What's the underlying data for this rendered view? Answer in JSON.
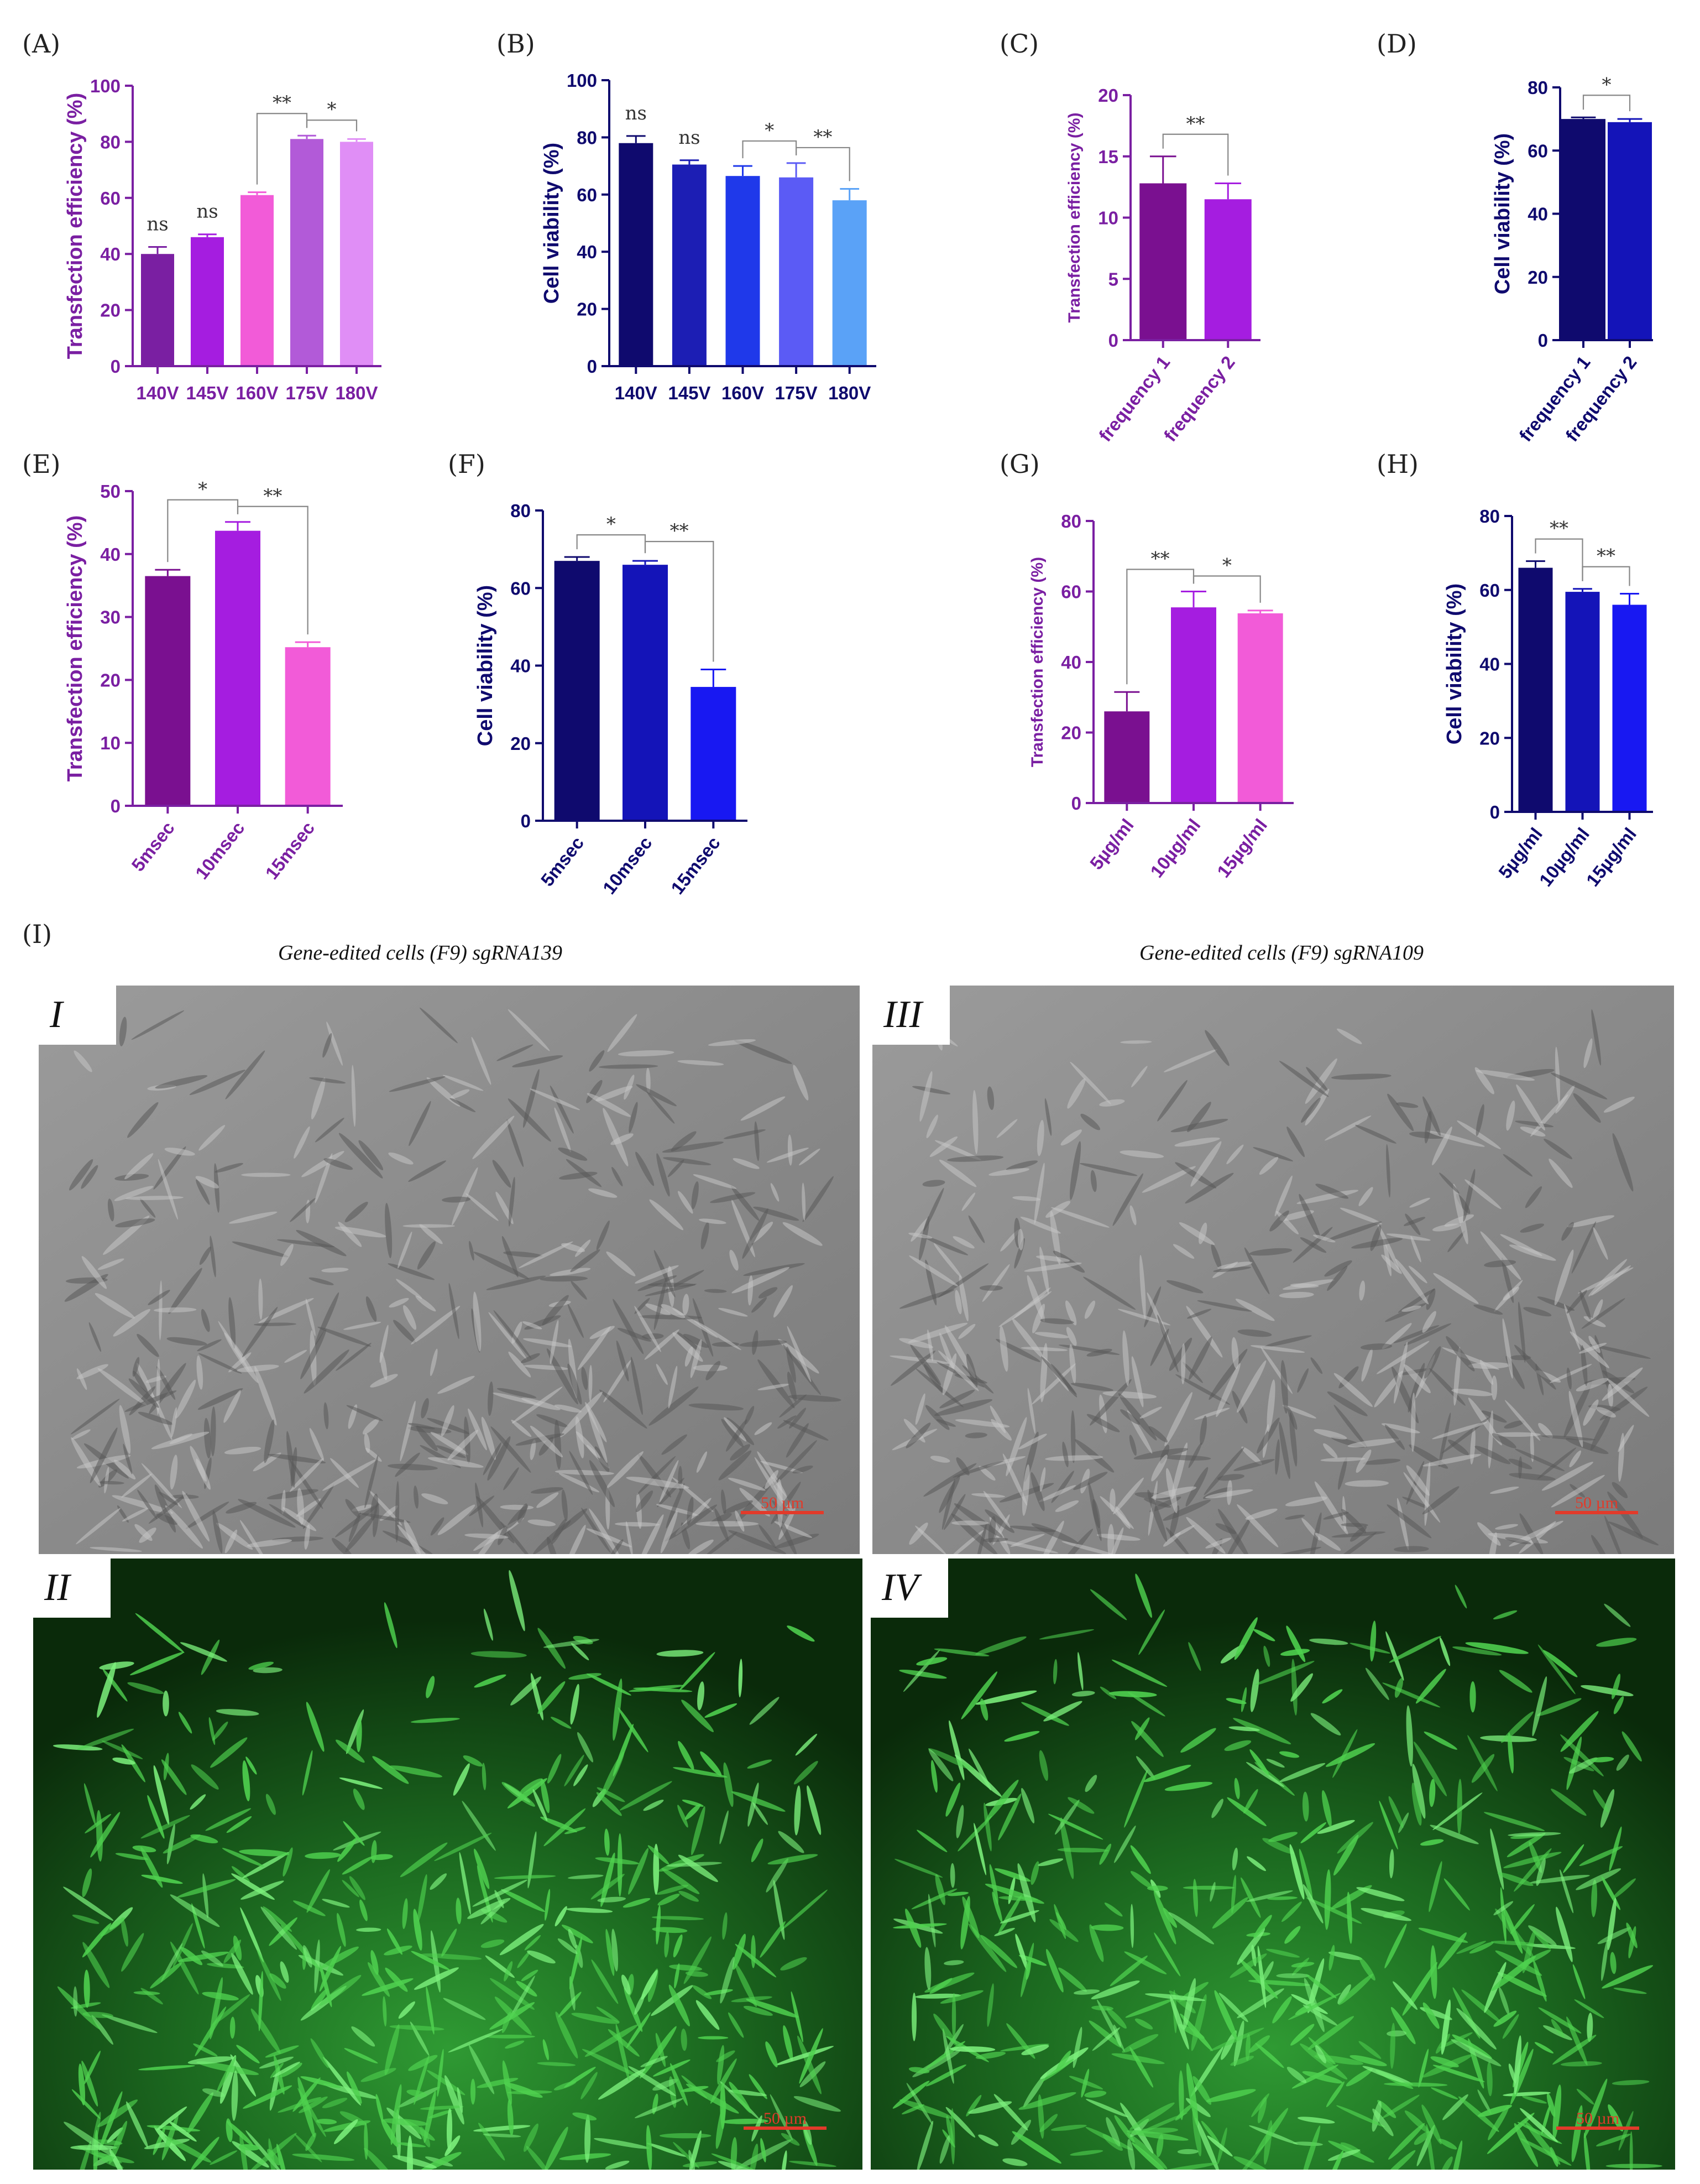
{
  "chart_data": [
    {
      "id": "A",
      "letter": "(A)",
      "type": "bar",
      "categories": [
        "140V",
        "145V",
        "160V",
        "175V",
        "180V"
      ],
      "values": [
        40,
        46,
        61,
        81,
        80
      ],
      "errors": [
        2.5,
        1,
        1,
        1.2,
        1
      ],
      "colors": [
        "#7a1fa2",
        "#a51de0",
        "#f25bd8",
        "#b25ad8",
        "#e08ef6"
      ],
      "title": "",
      "xlabel": "",
      "ylabel": "Transfection efficiency (%)",
      "ylim": [
        0,
        100
      ],
      "yticks": [
        0,
        20,
        40,
        60,
        80,
        100
      ],
      "axis_color": "#7a1fa2",
      "label_color": "#7a1fa2",
      "ns": [
        0,
        1
      ],
      "brackets": [
        {
          "from": 2,
          "to": 3,
          "label": "**"
        },
        {
          "from": 3,
          "to": 4,
          "label": "*"
        }
      ],
      "rotate_labels": false
    },
    {
      "id": "B",
      "letter": "(B)",
      "type": "bar",
      "categories": [
        "140V",
        "145V",
        "160V",
        "175V",
        "180V"
      ],
      "values": [
        78,
        70.5,
        66.5,
        66,
        58
      ],
      "errors": [
        2.5,
        1.5,
        3.5,
        5,
        4
      ],
      "colors": [
        "#0f0a6e",
        "#1c1eb4",
        "#1f39ea",
        "#5b5bf5",
        "#5aa2f7"
      ],
      "title": "",
      "xlabel": "",
      "ylabel": "Cell viability (%)",
      "ylim": [
        0,
        100
      ],
      "yticks": [
        0,
        20,
        40,
        60,
        80,
        100
      ],
      "axis_color": "#0f0a6e",
      "label_color": "#0f0a6e",
      "ns": [
        0,
        1
      ],
      "brackets": [
        {
          "from": 2,
          "to": 3,
          "label": "*"
        },
        {
          "from": 3,
          "to": 4,
          "label": "**"
        }
      ],
      "rotate_labels": false
    },
    {
      "id": "C",
      "letter": "(C)",
      "type": "bar",
      "categories": [
        "frequency 1",
        "frequency 2"
      ],
      "values": [
        12.8,
        11.5
      ],
      "errors": [
        2.2,
        1.3
      ],
      "colors": [
        "#7a1090",
        "#a51de0"
      ],
      "title": "",
      "xlabel": "",
      "ylabel": "Transfection efficiency (%)",
      "ylim": [
        0,
        20
      ],
      "yticks": [
        0,
        5,
        10,
        15,
        20
      ],
      "axis_color": "#7a1fa2",
      "label_color": "#7a1fa2",
      "ns": [],
      "brackets": [
        {
          "from": 0,
          "to": 1,
          "label": "**"
        }
      ],
      "rotate_labels": true
    },
    {
      "id": "D",
      "letter": "(D)",
      "type": "bar",
      "categories": [
        "frequency 1",
        "frequency 2"
      ],
      "values": [
        70,
        69
      ],
      "errors": [
        0.5,
        1
      ],
      "colors": [
        "#0f0a6e",
        "#1414b8"
      ],
      "title": "",
      "xlabel": "",
      "ylabel": "Cell viability (%)",
      "ylim": [
        0,
        80
      ],
      "yticks": [
        0,
        20,
        40,
        60,
        80
      ],
      "axis_color": "#0f0a6e",
      "label_color": "#0f0a6e",
      "ns": [],
      "brackets": [
        {
          "from": 0,
          "to": 1,
          "label": "*"
        }
      ],
      "rotate_labels": true
    },
    {
      "id": "E",
      "letter": "(E)",
      "type": "bar",
      "categories": [
        "5msec",
        "10msec",
        "15msec"
      ],
      "values": [
        36.5,
        43.7,
        25.2
      ],
      "errors": [
        1,
        1.4,
        0.8
      ],
      "colors": [
        "#7a1090",
        "#a51de0",
        "#f25bd8"
      ],
      "title": "",
      "xlabel": "",
      "ylabel": "Transfection efficiency (%)",
      "ylim": [
        0,
        50
      ],
      "yticks": [
        0,
        10,
        20,
        30,
        40,
        50
      ],
      "axis_color": "#7a1fa2",
      "label_color": "#7a1fa2",
      "ns": [],
      "brackets": [
        {
          "from": 0,
          "to": 1,
          "label": "*"
        },
        {
          "from": 1,
          "to": 2,
          "label": "**"
        }
      ],
      "rotate_labels": true
    },
    {
      "id": "F",
      "letter": "(F)",
      "type": "bar",
      "categories": [
        "5msec",
        "10msec",
        "15msec"
      ],
      "values": [
        67,
        66,
        34.5
      ],
      "errors": [
        1,
        1,
        4.5
      ],
      "colors": [
        "#0f0a6e",
        "#1414b8",
        "#1818f2"
      ],
      "title": "",
      "xlabel": "",
      "ylabel": "Cell viability (%)",
      "ylim": [
        0,
        80
      ],
      "yticks": [
        0,
        20,
        40,
        60,
        80
      ],
      "axis_color": "#0f0a6e",
      "label_color": "#0f0a6e",
      "ns": [],
      "brackets": [
        {
          "from": 0,
          "to": 1,
          "label": "*"
        },
        {
          "from": 1,
          "to": 2,
          "label": "**"
        }
      ],
      "rotate_labels": true
    },
    {
      "id": "G",
      "letter": "(G)",
      "type": "bar",
      "categories": [
        "5µg/ml",
        "10µg/ml",
        "15µg/ml"
      ],
      "values": [
        26,
        55.5,
        53.8
      ],
      "errors": [
        5.5,
        4.5,
        0.8
      ],
      "colors": [
        "#7a1090",
        "#a51de0",
        "#f25bd8"
      ],
      "title": "",
      "xlabel": "",
      "ylabel": "Transfection efficiency (%)",
      "ylim": [
        0,
        80
      ],
      "yticks": [
        0,
        20,
        40,
        60,
        80
      ],
      "axis_color": "#7a1fa2",
      "label_color": "#7a1fa2",
      "ns": [],
      "brackets": [
        {
          "from": 0,
          "to": 1,
          "label": "**"
        },
        {
          "from": 1,
          "to": 2,
          "label": "*"
        }
      ],
      "rotate_labels": true
    },
    {
      "id": "H",
      "letter": "(H)",
      "type": "bar",
      "categories": [
        "5µg/ml",
        "10µg/ml",
        "15µg/ml"
      ],
      "values": [
        66,
        59.5,
        56
      ],
      "errors": [
        1.8,
        0.8,
        3
      ],
      "colors": [
        "#0f0a6e",
        "#1414b8",
        "#1818f2"
      ],
      "title": "",
      "xlabel": "",
      "ylabel": "Cell viability (%)",
      "ylim": [
        0,
        80
      ],
      "yticks": [
        0,
        20,
        40,
        60,
        80
      ],
      "axis_color": "#0f0a6e",
      "label_color": "#0f0a6e",
      "ns": [],
      "brackets": [
        {
          "from": 0,
          "to": 1,
          "label": "**"
        },
        {
          "from": 1,
          "to": 2,
          "label": "**"
        }
      ],
      "rotate_labels": true
    }
  ],
  "ns_label": "ns",
  "micrographs": {
    "letter": "(I)",
    "title_left": "Gene-edited cells (F9) sgRNA139",
    "title_right": "Gene-edited cells (F9) sgRNA109",
    "panels": [
      {
        "id": "I",
        "label": "I",
        "kind": "phase",
        "scale_bar": "50 µm"
      },
      {
        "id": "III",
        "label": "III",
        "kind": "phase",
        "scale_bar": "50 µm"
      },
      {
        "id": "II",
        "label": "II",
        "kind": "fluorescence",
        "scale_bar": "50 µm"
      },
      {
        "id": "IV",
        "label": "IV",
        "kind": "fluorescence",
        "scale_bar": "50 µm"
      }
    ]
  }
}
